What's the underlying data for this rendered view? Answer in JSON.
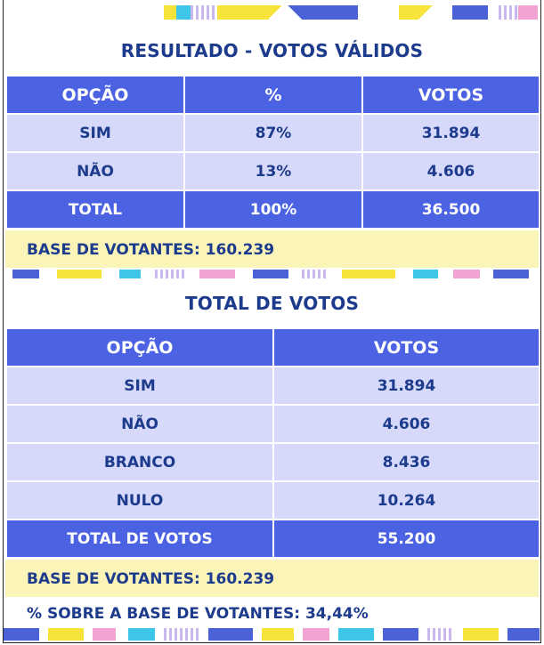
{
  "section1": {
    "title": "RESULTADO - VOTOS VÁLIDOS",
    "headers": [
      "OPÇÃO",
      "%",
      "VOTOS"
    ],
    "rows": [
      {
        "option": "SIM",
        "percent": "87%",
        "votes": "31.894"
      },
      {
        "option": "NÃO",
        "percent": "13%",
        "votes": "4.606"
      }
    ],
    "total": {
      "option": "TOTAL",
      "percent": "100%",
      "votes": "36.500"
    },
    "base": "BASE DE VOTANTES: 160.239"
  },
  "section2": {
    "title": "TOTAL DE VOTOS",
    "headers": [
      "OPÇÃO",
      "VOTOS"
    ],
    "rows": [
      {
        "option": "SIM",
        "votes": "31.894"
      },
      {
        "option": "NÃO",
        "votes": "4.606"
      },
      {
        "option": "BRANCO",
        "votes": "8.436"
      },
      {
        "option": "NULO",
        "votes": "10.264"
      }
    ],
    "total": {
      "option": "TOTAL DE VOTOS",
      "votes": "55.200"
    },
    "base": "BASE DE VOTANTES: 160.239",
    "percent_over_base": "% SOBRE A BASE DE VOTANTES: 34,44%"
  },
  "colors": {
    "header_blue": "#4b62e3",
    "row_lavender": "#d6d9f9",
    "text_navy": "#1d3b8c",
    "base_yellow": "#fbf4b8"
  }
}
